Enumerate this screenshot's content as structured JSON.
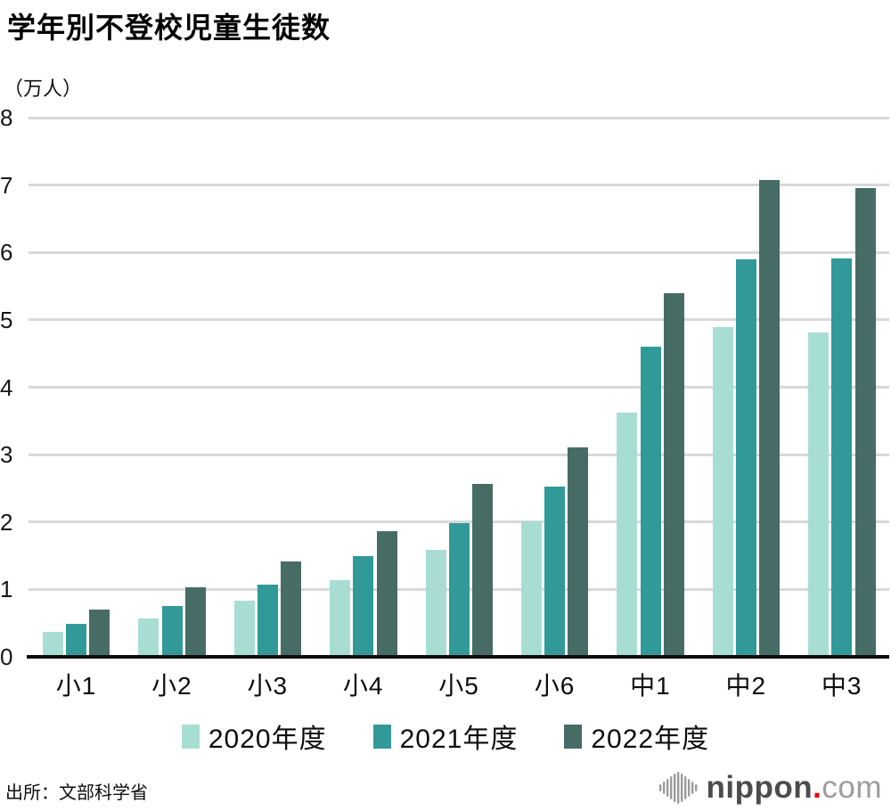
{
  "title": "学年別不登校児童生徒数",
  "unit_label": "（万人）",
  "source": "出所：文部科学省",
  "logo": {
    "icon": "nippon-soundbars-icon",
    "name": "nippon",
    "dot": ".",
    "tld": "com"
  },
  "colors": {
    "series_2020": "#a8ddd4",
    "series_2021": "#319a99",
    "series_2022": "#476c66",
    "gridline": "#d8d8d8",
    "axis": "#0c0c0c",
    "logo_red": "#e60012",
    "logo_gray": "#9b9b9b"
  },
  "chart_data": {
    "type": "bar",
    "title": "学年別不登校児童生徒数",
    "ylabel": "（万人）",
    "categories": [
      "小1",
      "小2",
      "小3",
      "小4",
      "小5",
      "小6",
      "中1",
      "中2",
      "中3"
    ],
    "series": [
      {
        "name": "2020年度",
        "color": "#a8ddd4",
        "values": [
          0.35,
          0.54,
          0.81,
          1.11,
          1.56,
          1.99,
          3.6,
          4.86,
          4.79
        ]
      },
      {
        "name": "2021年度",
        "color": "#319a99",
        "values": [
          0.46,
          0.73,
          1.04,
          1.47,
          1.96,
          2.5,
          4.57,
          5.87,
          5.89
        ]
      },
      {
        "name": "2022年度",
        "color": "#476c66",
        "values": [
          0.68,
          1.0,
          1.39,
          1.84,
          2.54,
          3.08,
          5.37,
          7.05,
          6.93
        ]
      }
    ],
    "ylim": [
      0,
      8
    ],
    "yticks": [
      0,
      1,
      2,
      3,
      4,
      5,
      6,
      7,
      8
    ],
    "grid": true,
    "legend_position": "bottom"
  }
}
